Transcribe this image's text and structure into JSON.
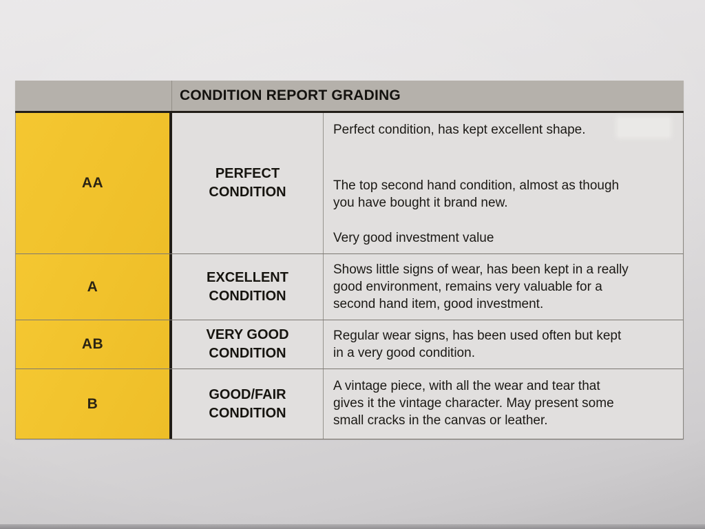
{
  "table": {
    "title": "CONDITION REPORT GRADING",
    "rows": [
      {
        "grade": "AA",
        "condition": "PERFECT\nCONDITION",
        "paragraphs": [
          "Perfect condition, has kept excellent shape.",
          "The top second hand condition, almost as though\nyou have bought it brand new.",
          "Very good investment value"
        ]
      },
      {
        "grade": "A",
        "condition": "EXCELLENT\nCONDITION",
        "paragraphs": [
          "Shows little signs of wear, has been kept in a really\ngood environment, remains very valuable for a\nsecond hand item, good investment."
        ]
      },
      {
        "grade": "AB",
        "condition": "VERY GOOD\nCONDITION",
        "paragraphs": [
          "Regular wear signs, has been used often but kept\nin a very good condition."
        ]
      },
      {
        "grade": "B",
        "condition": "GOOD/FAIR\nCONDITION",
        "paragraphs": [
          "A vintage piece, with all the wear and tear that\ngives it the vintage character. May present some\nsmall cracks in the canvas or leather."
        ]
      }
    ],
    "colors": {
      "header_bg": "#b5b1ab",
      "grade_bg": "#f1c22c",
      "cell_bg": "#e1dfde",
      "border_dark": "#211d17",
      "border_light": "#96938d",
      "text": "#1b1915"
    }
  }
}
